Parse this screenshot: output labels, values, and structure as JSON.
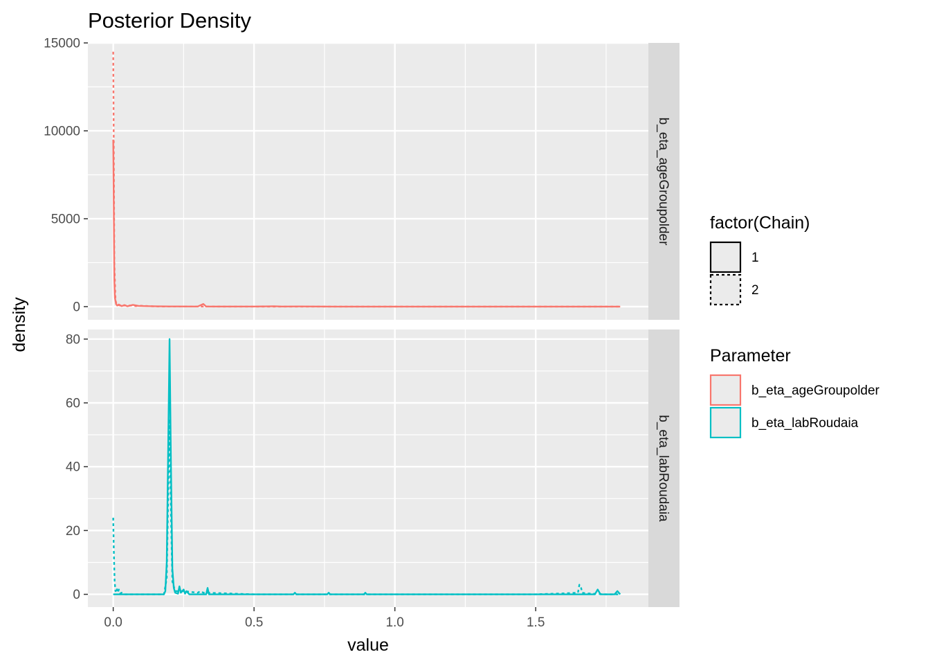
{
  "chart_data": {
    "type": "line",
    "title": "Posterior Density",
    "xlabel": "value",
    "ylabel": "density",
    "facet_by": "Parameter",
    "x_ticks": [
      "0.0",
      "0.5",
      "1.0",
      "1.5"
    ],
    "x_tick_values": [
      0,
      0.5,
      1.0,
      1.5
    ],
    "xlim": [
      -0.09,
      1.9
    ],
    "grid": true,
    "legend_position": "right",
    "legends": [
      {
        "title": "factor(Chain)",
        "items": [
          {
            "label": "1",
            "linetype": "solid"
          },
          {
            "label": "2",
            "linetype": "dashed"
          }
        ]
      },
      {
        "title": "Parameter",
        "items": [
          {
            "label": "b_eta_ageGroupolder",
            "color": "#F8766D"
          },
          {
            "label": "b_eta_labRoudaia",
            "color": "#00BFC4"
          }
        ]
      }
    ],
    "panels": [
      {
        "strip": "b_eta_ageGroupolder",
        "color": "#F8766D",
        "y_ticks": [
          "0",
          "5000",
          "10000",
          "15000"
        ],
        "y_tick_values": [
          0,
          5000,
          10000,
          15000
        ],
        "ylim": [
          -750,
          15000
        ],
        "series": [
          {
            "name": "1",
            "linetype": "solid",
            "x": [
              0.0,
              0.002,
              0.004,
              0.006,
              0.01,
              0.014,
              0.02,
              0.03,
              0.04,
              0.05,
              0.07,
              0.09,
              0.11,
              0.14,
              0.2,
              0.3,
              0.32,
              0.33,
              0.4,
              0.5,
              0.57,
              0.6,
              0.66,
              0.8,
              1.0,
              1.2,
              1.4,
              1.6,
              1.8
            ],
            "y": [
              9500,
              5500,
              1500,
              500,
              150,
              60,
              120,
              30,
              90,
              20,
              100,
              40,
              30,
              20,
              10,
              5,
              150,
              5,
              5,
              5,
              20,
              5,
              10,
              0,
              0,
              0,
              0,
              0,
              0
            ]
          },
          {
            "name": "2",
            "linetype": "dashed",
            "x": [
              0.0,
              0.002,
              0.004,
              0.008,
              0.012,
              0.02,
              0.03,
              0.05,
              0.08,
              0.1,
              0.15,
              0.2,
              0.3,
              0.5,
              0.8,
              1.0,
              1.5,
              1.8
            ],
            "y": [
              14500,
              9000,
              2500,
              400,
              100,
              80,
              40,
              80,
              30,
              50,
              10,
              5,
              5,
              0,
              0,
              0,
              0,
              0
            ]
          }
        ]
      },
      {
        "strip": "b_eta_labRoudaia",
        "color": "#00BFC4",
        "y_ticks": [
          "0",
          "20",
          "40",
          "60",
          "80"
        ],
        "y_tick_values": [
          0,
          20,
          40,
          60,
          80
        ],
        "ylim": [
          -4,
          83
        ],
        "series": [
          {
            "name": "1",
            "linetype": "solid",
            "x": [
              0.0,
              0.1,
              0.18,
              0.185,
              0.19,
              0.195,
              0.2,
              0.205,
              0.21,
              0.215,
              0.22,
              0.23,
              0.235,
              0.24,
              0.25,
              0.255,
              0.26,
              0.27,
              0.28,
              0.33,
              0.335,
              0.34,
              0.5,
              0.64,
              0.645,
              0.65,
              0.76,
              0.765,
              0.77,
              0.89,
              0.895,
              0.9,
              1.2,
              1.5,
              1.6,
              1.71,
              1.72,
              1.73,
              1.78,
              1.79,
              1.8
            ],
            "y": [
              0,
              0,
              0,
              1,
              10,
              45,
              80,
              40,
              8,
              2,
              0.5,
              0.2,
              2.5,
              0.5,
              1.5,
              0.2,
              1,
              0,
              0,
              0,
              2,
              0,
              0,
              0,
              0.5,
              0,
              0,
              0.5,
              0,
              0,
              0.5,
              0,
              0,
              0,
              0,
              0,
              1.5,
              0,
              0,
              1,
              0
            ]
          },
          {
            "name": "2",
            "linetype": "dashed",
            "x": [
              0.0,
              0.002,
              0.005,
              0.008,
              0.012,
              0.016,
              0.02,
              0.025,
              0.03,
              0.04,
              0.18,
              0.19,
              0.195,
              0.2,
              0.205,
              0.21,
              0.22,
              0.23,
              0.25,
              0.3,
              0.31,
              0.32,
              0.33,
              0.5,
              1.0,
              1.5,
              1.6,
              1.65,
              1.655,
              1.66,
              1.665,
              1.68,
              1.75,
              1.8
            ],
            "y": [
              24,
              14,
              4,
              1,
              2,
              0.5,
              1.5,
              0.3,
              0.5,
              0,
              0,
              5,
              30,
              55,
              25,
              4,
              1,
              1,
              1,
              0.5,
              1,
              0.5,
              0.5,
              0,
              0,
              0,
              0.3,
              0.5,
              3,
              2.5,
              0.5,
              0.3,
              0,
              0
            ]
          }
        ]
      }
    ]
  }
}
